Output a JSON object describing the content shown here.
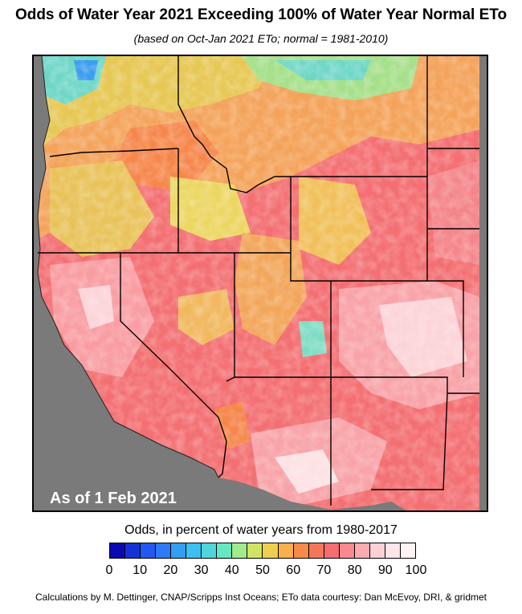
{
  "title": "Odds of Water Year 2021 Exceeding 100% of Water Year Normal ETo",
  "subtitle": "(based on Oct-Jan 2021 ETo; normal = 1981-2010)",
  "date_label": "As of 1 Feb 2021",
  "legend": {
    "title": "Odds, in percent of water years from 1980-2017",
    "ticks": [
      "0",
      "10",
      "20",
      "30",
      "40",
      "50",
      "60",
      "70",
      "80",
      "90",
      "100"
    ],
    "colors": [
      "#0a0ab4",
      "#1e4ff0",
      "#2f8cf5",
      "#3ec6ef",
      "#5fe8c6",
      "#c6ec6b",
      "#f7c84a",
      "#f6874b",
      "#f3686c",
      "#f79a9f",
      "#fddbe0",
      "#fff3f4"
    ]
  },
  "map": {
    "ocean_color": "#7a7a7a",
    "dominant_color": "#f36f72"
  },
  "credit": "Calculations by M. Dettinger, CNAP/Scripps Inst Oceans; ETo data courtesy: Dan McEvoy, DRI, & gridmet"
}
